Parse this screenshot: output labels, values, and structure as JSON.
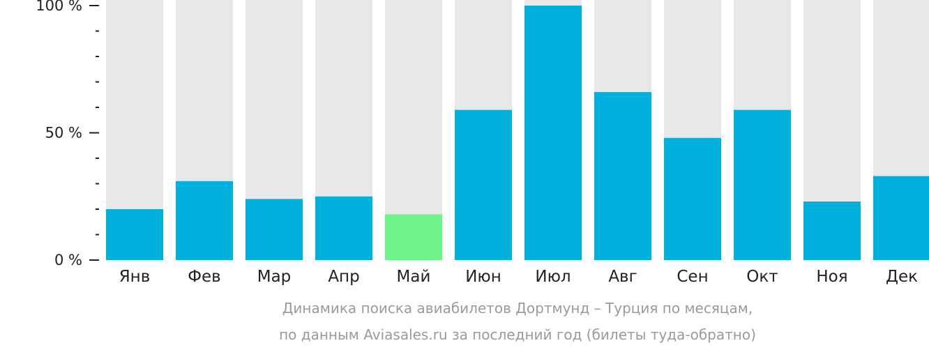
{
  "chart_data": {
    "type": "bar",
    "categories": [
      "Янв",
      "Фев",
      "Мар",
      "Апр",
      "Май",
      "Июн",
      "Июл",
      "Авг",
      "Сен",
      "Окт",
      "Ноя",
      "Дек"
    ],
    "values": [
      20,
      31,
      24,
      25,
      18,
      59,
      100,
      66,
      48,
      59,
      23,
      33
    ],
    "highlight_index": 4,
    "ylim": [
      0,
      100
    ],
    "yticks": [
      {
        "value": 0,
        "label": "0 %"
      },
      {
        "value": 50,
        "label": "50 %"
      },
      {
        "value": 100,
        "label": "100 %"
      }
    ],
    "minor_tick_step": 10,
    "colors": {
      "bar": "#00b0dd",
      "highlight": "#6ef28a",
      "background_bar": "#e8e8e8",
      "axis": "#222222"
    }
  },
  "caption": {
    "line1": "Динамика поиска авиабилетов Дортмунд – Турция по месяцам,",
    "line2": "по данным Aviasales.ru за последний год (билеты туда-обратно)"
  }
}
